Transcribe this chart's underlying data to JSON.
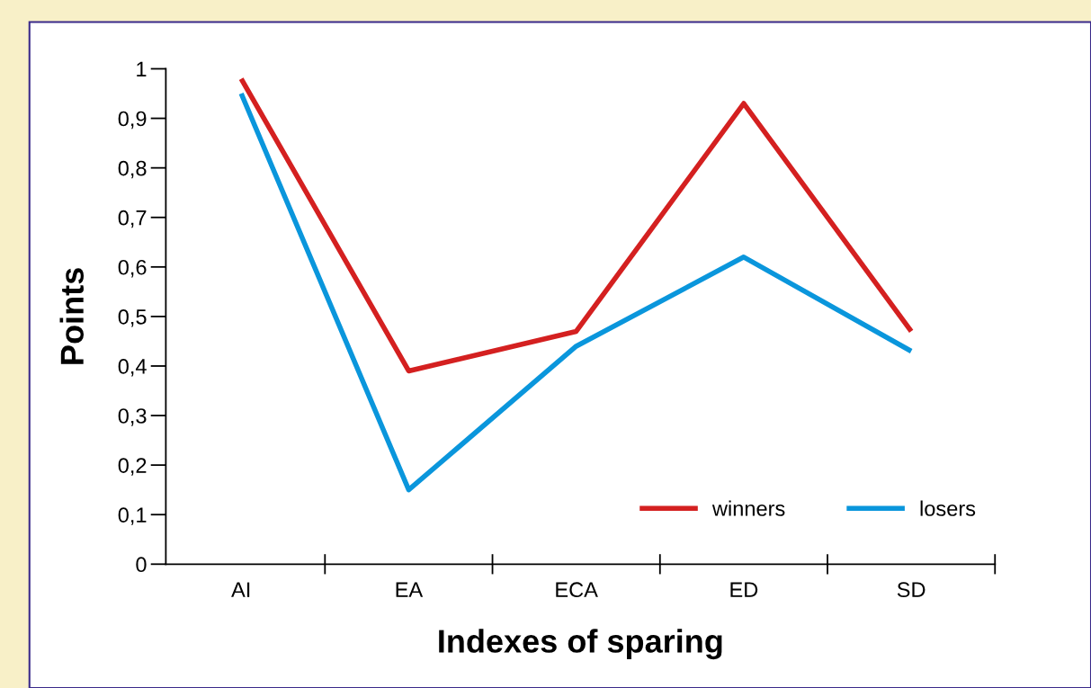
{
  "chart_data": {
    "type": "line",
    "xlabel": "Indexes of sparing",
    "ylabel": "Points",
    "categories": [
      "AI",
      "EA",
      "ECA",
      "ED",
      "SD"
    ],
    "series": [
      {
        "name": "winners",
        "color": "#d42020",
        "values": [
          0.98,
          0.39,
          0.47,
          0.93,
          0.47
        ]
      },
      {
        "name": "losers",
        "color": "#0a96dc",
        "values": [
          0.95,
          0.15,
          0.44,
          0.62,
          0.43
        ]
      }
    ],
    "ylim": [
      0,
      1
    ],
    "yticks": [
      0,
      {
        "value": 0.1,
        "label": "0,1"
      },
      {
        "value": 0.2,
        "label": "0,2"
      },
      {
        "value": 0.3,
        "label": "0,3"
      },
      {
        "value": 0.4,
        "label": "0,4"
      },
      {
        "value": 0.5,
        "label": "0,5"
      },
      {
        "value": 0.6,
        "label": "0,6"
      },
      {
        "value": 0.7,
        "label": "0,7"
      },
      {
        "value": 0.8,
        "label": "0,8"
      },
      {
        "value": 0.9,
        "label": "0,9"
      },
      1
    ],
    "grid": false,
    "legend": "bottom right",
    "marker": "none",
    "line_style": "solid"
  }
}
